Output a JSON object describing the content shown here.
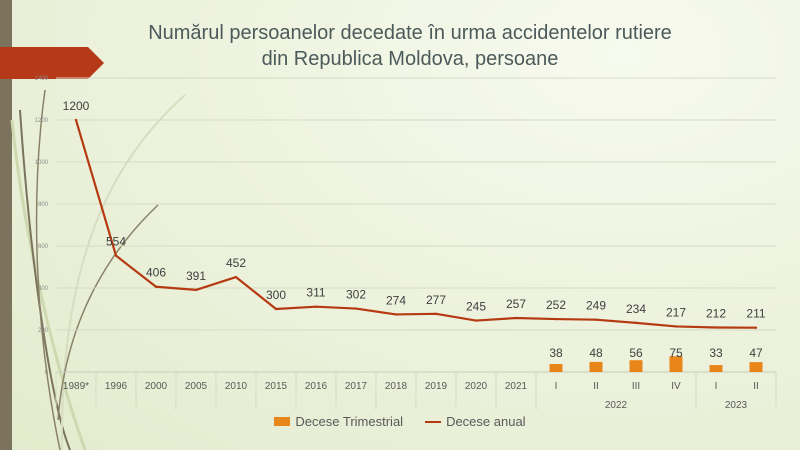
{
  "title_lines": [
    "Numărul persoanelor decedate în urma accidentelor rutiere",
    "din Republica Moldova, persoane"
  ],
  "legend": {
    "bars_label": "Decese Trimestrial",
    "line_label": "Decese anual"
  },
  "colors": {
    "line": "#b53a12",
    "bars": "#e8861a",
    "banner": "#b73a18",
    "left_bar": "#7b735c",
    "title": "#4b5a5a"
  },
  "chart_data": {
    "type": "bar+line",
    "y_ticks": [
      0,
      200,
      400,
      600,
      800,
      1000,
      1200,
      1400
    ],
    "ylim": [
      0,
      1400
    ],
    "grid": true,
    "categories": [
      "1989*",
      "1996",
      "2000",
      "2005",
      "2010",
      "2015",
      "2016",
      "2017",
      "2018",
      "2019",
      "2020",
      "2021",
      "I",
      "II",
      "III",
      "IV",
      "I",
      "II"
    ],
    "groups": [
      {
        "label": "2022",
        "from": 12,
        "to": 15
      },
      {
        "label": "2023",
        "from": 16,
        "to": 17
      }
    ],
    "series": [
      {
        "name": "Decese anual",
        "type": "line",
        "values": [
          1200,
          554,
          406,
          391,
          452,
          300,
          311,
          302,
          274,
          277,
          245,
          257,
          252,
          249,
          234,
          217,
          212,
          211
        ]
      },
      {
        "name": "Decese Trimestrial",
        "type": "bar",
        "values": [
          null,
          null,
          null,
          null,
          null,
          null,
          null,
          null,
          null,
          null,
          null,
          null,
          38,
          48,
          56,
          75,
          33,
          47
        ]
      }
    ],
    "legend_position": "bottom"
  }
}
